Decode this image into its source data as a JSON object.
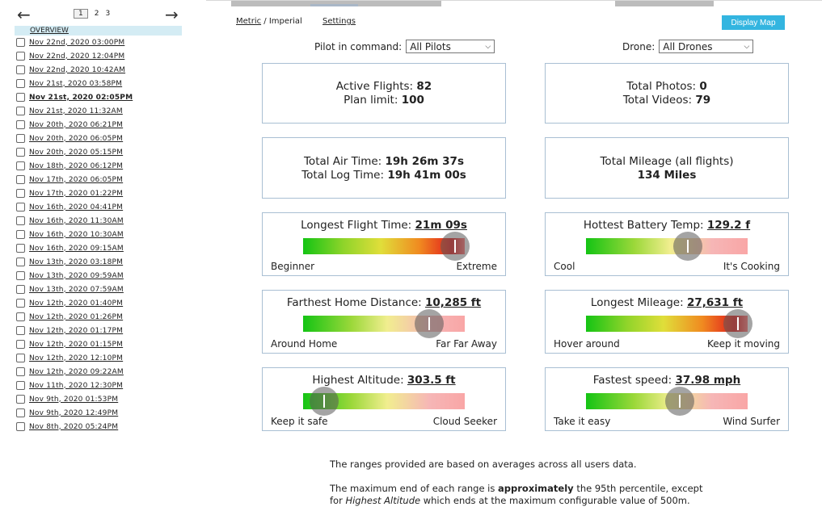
{
  "pager": {
    "prev_icon": "arrow-left-icon",
    "next_icon": "arrow-right-icon",
    "pages": [
      "1",
      "2",
      "3"
    ],
    "current_page": "1"
  },
  "sidebar": {
    "overview_label": "OVERVIEW",
    "flights": [
      "Nov 22nd, 2020 03:00PM",
      "Nov 22nd, 2020 12:04PM",
      "Nov 22nd, 2020 10:42AM",
      "Nov 21st, 2020 03:58PM",
      "Nov 21st, 2020 02:05PM",
      "Nov 21st, 2020 11:32AM",
      "Nov 20th, 2020 06:21PM",
      "Nov 20th, 2020 06:05PM",
      "Nov 20th, 2020 05:15PM",
      "Nov 18th, 2020 06:12PM",
      "Nov 17th, 2020 06:05PM",
      "Nov 17th, 2020 01:22PM",
      "Nov 16th, 2020 04:41PM",
      "Nov 16th, 2020 11:30AM",
      "Nov 16th, 2020 10:30AM",
      "Nov 16th, 2020 09:15AM",
      "Nov 13th, 2020 03:18PM",
      "Nov 13th, 2020 09:59AM",
      "Nov 13th, 2020 07:59AM",
      "Nov 12th, 2020 01:40PM",
      "Nov 12th, 2020 01:26PM",
      "Nov 12th, 2020 01:17PM",
      "Nov 12th, 2020 01:15PM",
      "Nov 12th, 2020 12:10PM",
      "Nov 12th, 2020 09:22AM",
      "Nov 11th, 2020 12:30PM",
      "Nov 9th, 2020 01:53PM",
      "Nov 9th, 2020 12:49PM",
      "Nov 8th, 2020 05:24PM"
    ],
    "active_flight": "Nov 21st, 2020 02:05PM"
  },
  "header": {
    "metric_label": "Metric",
    "unit_sep": " / ",
    "imperial_label": "Imperial",
    "settings_label": "Settings",
    "display_map_label": "Display Map"
  },
  "filters": {
    "pilot_label": "Pilot in command:",
    "pilot_value": "All Pilots",
    "drone_label": "Drone:",
    "drone_value": "All Drones"
  },
  "stats": {
    "active_flights_label": "Active Flights:",
    "active_flights": "82",
    "plan_limit_label": "Plan limit:",
    "plan_limit": "100",
    "total_photos_label": "Total Photos:",
    "total_photos": "0",
    "total_videos_label": "Total Videos:",
    "total_videos": "79",
    "air_time_label": "Total Air Time:",
    "air_time": "19h 26m 37s",
    "log_time_label": "Total Log Time:",
    "log_time": "19h 41m 00s",
    "mileage_label": "Total Mileage (all flights)",
    "mileage": "134 Miles"
  },
  "gauges": [
    {
      "title": "Longest Flight Time: ",
      "value": "21m 09s",
      "low": "Beginner",
      "high": "Extreme",
      "level": 1.0,
      "style": "full"
    },
    {
      "title": "Hottest Battery Temp: ",
      "value": "129.2 f",
      "low": "Cool",
      "high": "It's Cooking",
      "level": 0.63,
      "style": "alt"
    },
    {
      "title": "Farthest Home Distance: ",
      "value": "10,285 ft",
      "low": "Around Home",
      "high": "Far Far Away",
      "level": 0.78,
      "style": "alt"
    },
    {
      "title": "Longest Mileage: ",
      "value": "27,631 ft",
      "low": "Hover around",
      "high": "Keep it moving",
      "level": 1.0,
      "style": "full"
    },
    {
      "title": "Highest Altitude: ",
      "value": "303.5 ft",
      "low": "Keep it safe",
      "high": "Cloud Seeker",
      "level": 0.13,
      "style": "alt"
    },
    {
      "title": "Fastest speed: ",
      "value": "37.98 mph",
      "low": "Take it easy",
      "high": "Wind Surfer",
      "level": 0.58,
      "style": "alt"
    }
  ],
  "notes": {
    "line1": "The ranges provided are based on averages across all users data.",
    "line2a": "The maximum end of each range is ",
    "line2b": "approximately",
    "line2c": " the 95th percentile, except",
    "line3a": "for ",
    "line3b": "Highest Altitude",
    "line3c": " which ends at the maximum configurable value of 500m."
  }
}
